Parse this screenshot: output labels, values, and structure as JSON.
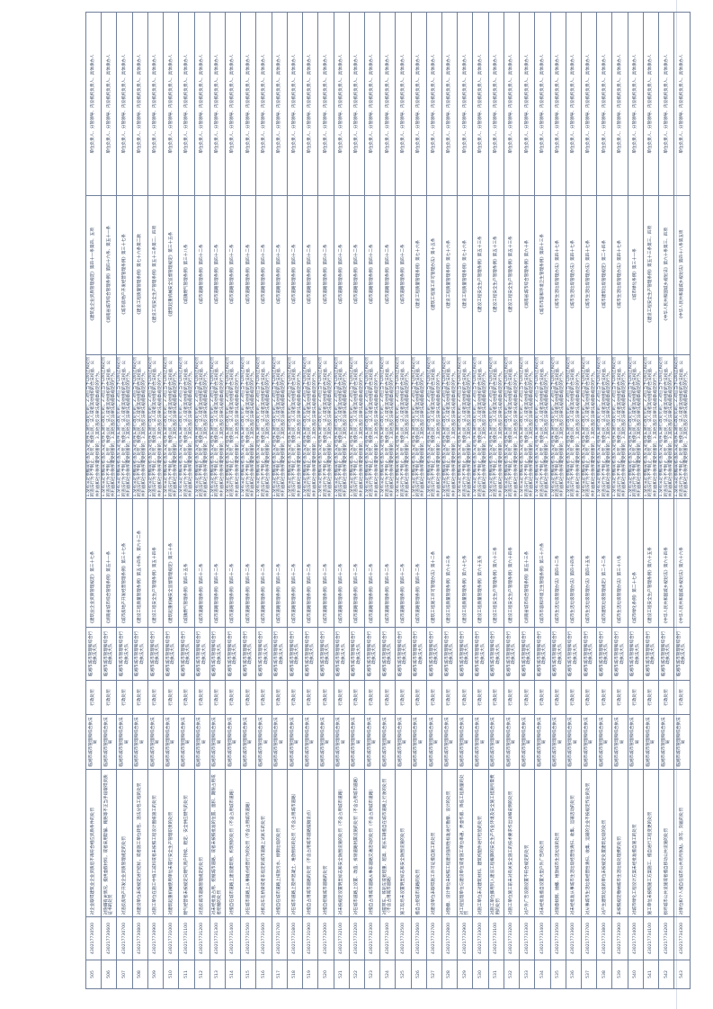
{
  "shared": {
    "type": "行政处罚",
    "subject": "临湘市城市管理和综合执法局",
    "handler": "临湘市城市管理和综合行政执法大队",
    "case": "1.没有法定依据或者违反法定程序实施行政处罚的；2.对应当予以制止和处罚的违法行为不予制止、处罚，致使公民、法人或者其他组织的合法权益、公共利益和社会秩序遭受损害的；3.其他违反法律法规规章规定的行为。",
    "responsible": "单位负责人、分管领导、内设机构负责人、具体承办人"
  },
  "rows": [
    {
      "num": "505",
      "code": "430217730500",
      "name": "对企业取得建筑业企业资质后不再符合相应资质条件的处罚",
      "basis": "《建筑业企业资质管理规定》第三十七条",
      "acc": "《建筑业企业资质管理规定》第四十一条第四、五项"
    },
    {
      "num": "506",
      "code": "430217730600",
      "name": "对隐瞒有关情况、提供虚假材料，或者采用欺骗、贿赂等不正当手段取得资质证书的处罚",
      "basis": "《湖南省城市综合管理条例》第五十一条",
      "acc": "《湖南省城市综合管理条例》第四十六条、第五十一条"
    },
    {
      "num": "507",
      "code": "430217730700",
      "name": "对违反房地产开发企业资质管理规定的处罚",
      "basis": "《城市房地产开发经营管理条例》第三十七条",
      "acc": "《城市房地产开发经营管理条例》第三十七条"
    },
    {
      "num": "508",
      "code": "430217730800",
      "name": "对建设单位未按规定进行招标，或者施工单位转包、违法分包工程的处罚",
      "basis": "《建设工程质量管理条例》第五十四条、第六十二条",
      "acc": "《建设工程质量管理条例》第七十六条第二款"
    },
    {
      "num": "509",
      "code": "430217730900",
      "name": "对施工单位在施工中偷工减料或者未按照工程设计图纸施工的处罚",
      "basis": "《建设工程安全生产管理条例》第五十四条",
      "acc": "《建设工程安全生产管理条例》第五十三条第二、四项"
    },
    {
      "num": "510",
      "code": "430217731000",
      "name": "对建筑起重机械使用单位未履行安全生产管理职责的处罚",
      "basis": "《建筑起重机械安全监督管理规定》第三十条",
      "acc": "《建筑起重机械安全监督管理规定》第三十五条"
    },
    {
      "num": "511",
      "code": "430217731100",
      "name": "燃气经营者未按规定向燃气用户持续、稳定、安全供应燃气的处罚",
      "basis": "《城镇燃气管理条例》第四十五条",
      "acc": "《城镇燃气管理条例》第三十八条"
    },
    {
      "num": "512",
      "code": "430217731200",
      "name": "对违反城市道路管理规定的处罚",
      "basis": "《城市道路管理条例》第四十二条",
      "acc": "《城市道路管理条例》第四十二条"
    },
    {
      "num": "513",
      "code": "430217731300",
      "name": "对未经批准占用、挖掘城市道路，或者未按照批准的位置、面积、期限占用或者挖掘的处罚",
      "basis": "《城市道路管理条例》第四十二条",
      "acc": "《城市道路管理条例》第四十二条"
    },
    {
      "num": "514",
      "code": "430217731400",
      "name": "对擅自在城市道路上建设建筑物、构筑物的处罚（不含占用城市道路）",
      "basis": "《城市道路管理条例》第四十二条",
      "acc": "《城市道路管理条例》第四十二条"
    },
    {
      "num": "515",
      "code": "430217731500",
      "name": "对在城市道路上从事摊点经营行为的处罚（不含占用城市道路）",
      "basis": "《城市道路管理条例》第四十二条",
      "acc": "《城市道路管理条例》第四十二条"
    },
    {
      "num": "516",
      "code": "430217731600",
      "name": "对机动车在桥梁或者非指定的城市道路上试刹车的处罚",
      "basis": "《城市道路管理条例》第四十二条",
      "acc": "《城市道路管理条例》第四十二条"
    },
    {
      "num": "517",
      "code": "430217731700",
      "name": "对擅自在城市道路上排放污水、倾倒垃圾的处罚",
      "basis": "《城市道路管理条例》第四十二条",
      "acc": "《城市道路管理条例》第四十二条"
    },
    {
      "num": "518",
      "code": "430217731800",
      "name": "对在城市道路上搅拌混凝土、堆放物料的处罚（不含占用城市道路）",
      "basis": "《城市道路管理条例》第四十二条",
      "acc": "《城市道路管理条例》第四十二条"
    },
    {
      "num": "519",
      "code": "430217731900",
      "name": "对擅自占用城市道路的处罚（不含占用城市道路摆摊设点）",
      "basis": "《城市道路管理条例》第四十二条",
      "acc": "《城市道路管理条例》第四十二条"
    },
    {
      "num": "520",
      "code": "430217732000",
      "name": "对擅自挖掘城市道路的处罚",
      "basis": "《城市道路管理条例》第四十二条",
      "acc": "《城市道路管理条例》第四十二条"
    },
    {
      "num": "521",
      "code": "430217732100",
      "name": "对未按规定设置明显标志和安全防围设施的处罚（不含占用城市道路）",
      "basis": "《城市道路管理条例》第四十二条",
      "acc": "《城市道路管理条例》第四十二条"
    },
    {
      "num": "522",
      "code": "430217732200",
      "name": "对在城市道路上设置、改造、拆除道路附属设施的处罚（不含占用城市道路）",
      "basis": "《城市道路管理条例》第四十二条",
      "acc": "《城市道路管理条例》第四十二条"
    },
    {
      "num": "523",
      "code": "430217732300",
      "name": "对擅自占用城市道路从事非道路交通活动的处罚（不含占用城市道路）",
      "basis": "《城市道路管理条例》第四十二条",
      "acc": "《城市道路管理条例》第四十二条"
    },
    {
      "num": "524",
      "code": "430217732400",
      "name": "对履带车、铁轮车或者超重、超高、超长车辆擅自在城市道路上行驶的处罚（不含占用城市道路）",
      "basis": "《城市道路管理条例》第四十二条",
      "acc": "《城市道路管理条例》第四十二条"
    },
    {
      "num": "525",
      "code": "430217732500",
      "name": "施工现场未设置明显标志和安全防围设施的处罚",
      "basis": "《城市道路管理条例》第四十二条",
      "acc": "《城市道路管理条例》第四十二条"
    },
    {
      "num": "526",
      "code": "430217732600",
      "name": "擅自占挖城市道路的处罚",
      "basis": "《城市道路管理条例》第四十二条",
      "acc": "《建设工程质量管理条例》第七十六条"
    },
    {
      "num": "527",
      "code": "430217732700",
      "name": "对建设单位未取得施工许可证擅自施工的处罚",
      "basis": "《建筑工程施工许可管理办法》第十二条",
      "acc": "《建筑工程施工许可管理办法》第十五条"
    },
    {
      "num": "528",
      "code": "430217732800",
      "name": "对勘察、设计单位未按照工程建设强制性标准进行勘察、设计的处罚",
      "basis": "《建设工程质量管理条例》第六十三条",
      "acc": "《建设工程质量管理条例》第七十六条"
    },
    {
      "num": "529",
      "code": "430217732900",
      "name": "对工程监理单位与建设单位或者施工单位串通，弄虚作假、降低工程质量的处罚",
      "basis": "《建设工程质量管理条例》第六十七条",
      "acc": "《建设工程质量管理条例》第七十六条"
    },
    {
      "num": "530",
      "code": "430217733000",
      "name": "对施工单位未对建筑材料、建筑构配件进行检验的处罚",
      "basis": "《建设工程质量管理条例》第六十五条",
      "acc": "《建设工程安全生产管理条例》第五十三条"
    },
    {
      "num": "531",
      "code": "430217733100",
      "name": "对施工单位挪用列入建设工程概算的安全生产作业环境及安全施工措施所需费用的处罚",
      "basis": "《建设工程安全生产管理条例》第六十三条",
      "acc": "《建设工程安全生产管理条例》第五十三条"
    },
    {
      "num": "532",
      "code": "430217733200",
      "name": "对施工单位施工前未对有关安全施工的技术要求作出详细说明的处罚",
      "basis": "《建设工程安全生产管理条例》第六十四条",
      "acc": "《建设工程安全生产管理条例》第五十三条"
    },
    {
      "num": "533",
      "code": "430217733300",
      "name": "对户外广告设施设置不符合规定的处罚",
      "basis": "《湖南省城市综合管理条例》第五十三条",
      "acc": "《湖南省城市综合管理条例》第六十条"
    },
    {
      "num": "534",
      "code": "430217733400",
      "name": "对未经批准擅自设置大型户外广告的处罚",
      "basis": "《城市市容和环境卫生管理条例》第三十六条",
      "acc": "《城市市容和环境卫生管理条例》第四十三条"
    },
    {
      "num": "535",
      "code": "430217733500",
      "name": "对随意倾倒、抛撒、堆放城市生活垃圾的处罚",
      "basis": "《城市生活垃圾管理办法》第四十二条",
      "acc": "《城市生活垃圾管理办法》第四十七条"
    },
    {
      "num": "536",
      "code": "430217733600",
      "name": "对未经批准从事城市生活垃圾经营性清扫、收集、运输活动的处罚",
      "basis": "《城市生活垃圾管理办法》第四十四条",
      "acc": "《城市生活垃圾管理办法》第四十七条"
    },
    {
      "num": "537",
      "code": "430217733700",
      "name": "对从事城市生活垃圾经营性清扫、收集、运输的企业不按规定作业的处罚",
      "basis": "《城市生活垃圾管理办法》第四十五条",
      "acc": "《城市生活垃圾管理办法》第四十七条"
    },
    {
      "num": "538",
      "code": "430217733800",
      "name": "对产生建筑垃圾的单位未按规定处置建筑垃圾的处罚",
      "basis": "《城市建筑垃圾管理规定》第二十二条",
      "acc": "《城市建筑垃圾管理规定》第二十四条"
    },
    {
      "num": "539",
      "code": "430217733900",
      "name": "未按照规定缴纳城市生活垃圾处理费的处罚",
      "basis": "《城市生活垃圾管理办法》第三十八条",
      "acc": "《城市生活垃圾管理办法》第四十七条"
    },
    {
      "num": "540",
      "code": "430217734000",
      "name": "对城市绿化工程设计方案未经批准擅自施工的处罚",
      "basis": "《城市绿化条例》第二十七条",
      "acc": "《城市绿化条例》第三十一条"
    },
    {
      "num": "541",
      "code": "430217734100",
      "name": "施工单位未按照施工方案施工、擅自进行工程变更的处罚",
      "basis": "《建设工程安全生产管理条例》第六十五条",
      "acc": "《建设工程安全生产管理条例》第五十三条第三、四项"
    },
    {
      "num": "542",
      "code": "430217734200",
      "name": "损坏城市公共设施或者擅自移动公共设施的处罚",
      "basis": "《中华人民共和国城乡规划法》第六十四条",
      "acc": "《中华人民共和国城乡规划法》第六十条第三、四项"
    },
    {
      "num": "543",
      "code": "430217734300",
      "name": "对单位和个人擅自在城市公共场所张贴、涂写、刻画的处罚",
      "basis": "《中华人民共和国城乡规划法》第六十六条",
      "acc": "《中华人民共和国城乡规划法》第四十八条第五项"
    }
  ]
}
